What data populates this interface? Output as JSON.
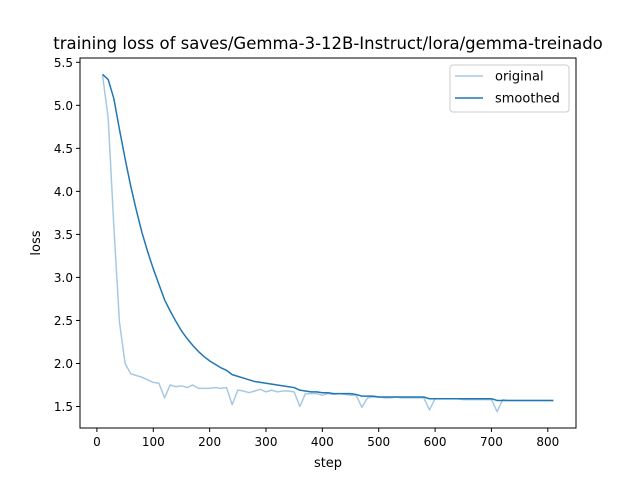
{
  "chart_data": {
    "type": "line",
    "title": "training loss of saves/Gemma-3-12B-Instruct/lora/gemma-treinado",
    "xlabel": "step",
    "ylabel": "loss",
    "xlim": [
      -30,
      850
    ],
    "ylim": [
      1.25,
      5.55
    ],
    "xticks": [
      0,
      100,
      200,
      300,
      400,
      500,
      600,
      700,
      800
    ],
    "yticks": [
      1.5,
      2.0,
      2.5,
      3.0,
      3.5,
      4.0,
      4.5,
      5.0,
      5.5
    ],
    "grid": false,
    "legend": "upper right",
    "series": [
      {
        "name": "original",
        "color": "#a6c9e3",
        "x": [
          10,
          20,
          30,
          40,
          50,
          60,
          70,
          80,
          90,
          100,
          110,
          120,
          130,
          140,
          150,
          160,
          170,
          180,
          190,
          200,
          210,
          220,
          230,
          240,
          250,
          260,
          270,
          280,
          290,
          300,
          310,
          320,
          330,
          340,
          350,
          360,
          370,
          380,
          390,
          400,
          410,
          420,
          430,
          440,
          450,
          460,
          470,
          480,
          490,
          500,
          510,
          520,
          530,
          540,
          550,
          560,
          570,
          580,
          590,
          600,
          610,
          620,
          630,
          640,
          650,
          660,
          670,
          680,
          690,
          700,
          710,
          720,
          730,
          740,
          750,
          760,
          770,
          780,
          790,
          800,
          810
        ],
        "values": [
          5.35,
          4.85,
          3.6,
          2.48,
          2.0,
          1.88,
          1.86,
          1.84,
          1.81,
          1.78,
          1.77,
          1.6,
          1.75,
          1.73,
          1.74,
          1.72,
          1.75,
          1.71,
          1.71,
          1.71,
          1.72,
          1.71,
          1.72,
          1.52,
          1.69,
          1.68,
          1.66,
          1.68,
          1.7,
          1.67,
          1.69,
          1.67,
          1.68,
          1.68,
          1.67,
          1.5,
          1.65,
          1.65,
          1.65,
          1.63,
          1.65,
          1.64,
          1.65,
          1.64,
          1.63,
          1.63,
          1.49,
          1.6,
          1.61,
          1.61,
          1.6,
          1.6,
          1.61,
          1.6,
          1.6,
          1.6,
          1.6,
          1.6,
          1.46,
          1.59,
          1.59,
          1.59,
          1.59,
          1.59,
          1.58,
          1.58,
          1.58,
          1.58,
          1.58,
          1.58,
          1.44,
          1.58,
          1.57,
          1.57,
          1.57,
          1.57,
          1.57,
          1.57,
          1.57,
          1.57,
          1.57
        ]
      },
      {
        "name": "smoothed",
        "color": "#1f77b4",
        "x": [
          10,
          20,
          30,
          40,
          50,
          60,
          70,
          80,
          90,
          100,
          110,
          120,
          130,
          140,
          150,
          160,
          170,
          180,
          190,
          200,
          210,
          220,
          230,
          240,
          250,
          260,
          270,
          280,
          290,
          300,
          310,
          320,
          330,
          340,
          350,
          360,
          370,
          380,
          390,
          400,
          410,
          420,
          430,
          440,
          450,
          460,
          470,
          480,
          490,
          500,
          510,
          520,
          530,
          540,
          550,
          560,
          570,
          580,
          590,
          600,
          610,
          620,
          630,
          640,
          650,
          660,
          670,
          680,
          690,
          700,
          710,
          720,
          730,
          740,
          750,
          760,
          770,
          780,
          790,
          800,
          810
        ],
        "values": [
          5.36,
          5.3,
          5.08,
          4.72,
          4.38,
          4.06,
          3.78,
          3.52,
          3.3,
          3.1,
          2.92,
          2.74,
          2.61,
          2.49,
          2.38,
          2.29,
          2.21,
          2.14,
          2.08,
          2.03,
          1.99,
          1.95,
          1.92,
          1.87,
          1.85,
          1.83,
          1.81,
          1.79,
          1.78,
          1.77,
          1.76,
          1.75,
          1.74,
          1.73,
          1.72,
          1.69,
          1.68,
          1.67,
          1.67,
          1.66,
          1.66,
          1.65,
          1.65,
          1.65,
          1.65,
          1.64,
          1.62,
          1.62,
          1.62,
          1.61,
          1.61,
          1.61,
          1.61,
          1.61,
          1.61,
          1.61,
          1.61,
          1.61,
          1.59,
          1.59,
          1.59,
          1.59,
          1.59,
          1.59,
          1.59,
          1.59,
          1.59,
          1.59,
          1.59,
          1.59,
          1.57,
          1.57,
          1.57,
          1.57,
          1.57,
          1.57,
          1.57,
          1.57,
          1.57,
          1.57,
          1.57
        ]
      }
    ]
  }
}
